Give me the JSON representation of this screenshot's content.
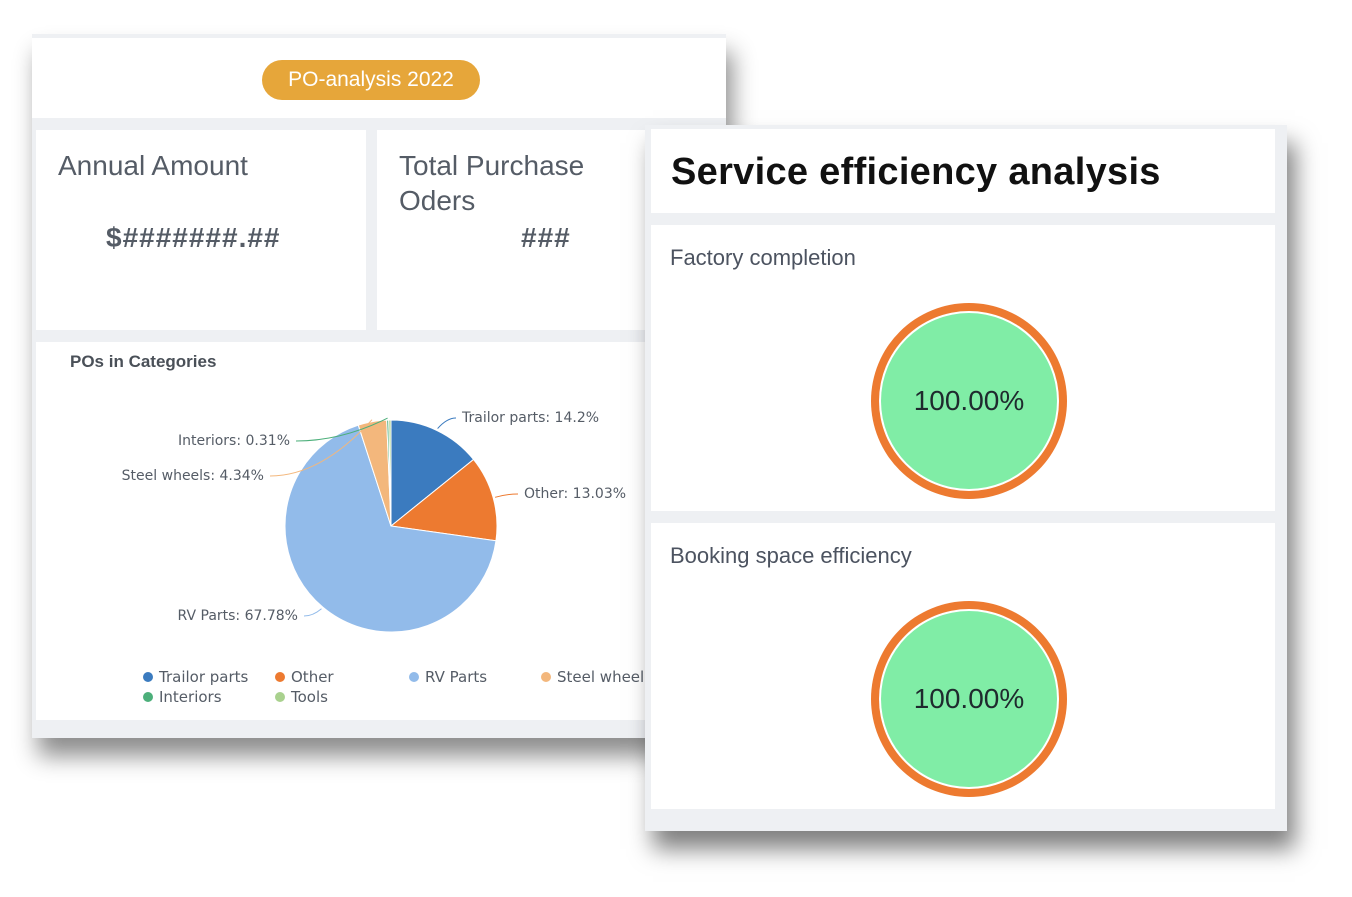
{
  "po_analysis": {
    "title": "PO-analysis 2022",
    "annual_amount": {
      "label": "Annual Amount",
      "value": "$#######.##"
    },
    "total_purchase_orders": {
      "label": "Total Purchase\nOders",
      "value": "###"
    }
  },
  "chart_data": {
    "type": "pie",
    "title": "POs in Categories",
    "slices": [
      {
        "name": "Trailor parts",
        "value": 14.2,
        "label": "Trailor parts: 14.2%",
        "color": "#3b7bbf"
      },
      {
        "name": "Other",
        "value": 13.03,
        "label": "Other: 13.03%",
        "color": "#ed7a30"
      },
      {
        "name": "RV Parts",
        "value": 67.78,
        "label": "RV Parts: 67.78%",
        "color": "#92bbea"
      },
      {
        "name": "Steel wheels",
        "value": 4.34,
        "label": "Steel wheels: 4.34%",
        "color": "#f3b77c"
      },
      {
        "name": "Interiors",
        "value": 0.31,
        "label": "Interiors: 0.31%",
        "color": "#4caf7a"
      },
      {
        "name": "Tools",
        "value": 0.34,
        "label": "",
        "color": "#a9d18e"
      }
    ],
    "legend": [
      "Trailor parts",
      "Other",
      "RV Parts",
      "Steel wheels",
      "Interiors",
      "Tools"
    ],
    "legend_position": "bottom"
  },
  "service": {
    "title": "Service efficiency analysis",
    "metrics": [
      {
        "label": "Factory completion",
        "value": "100.00%",
        "fraction": 1.0
      },
      {
        "label": "Booking space efficiency",
        "value": "100.00%",
        "fraction": 1.0
      }
    ],
    "colors": {
      "ring": "#ed7a30",
      "fill": "#80eda6"
    }
  }
}
